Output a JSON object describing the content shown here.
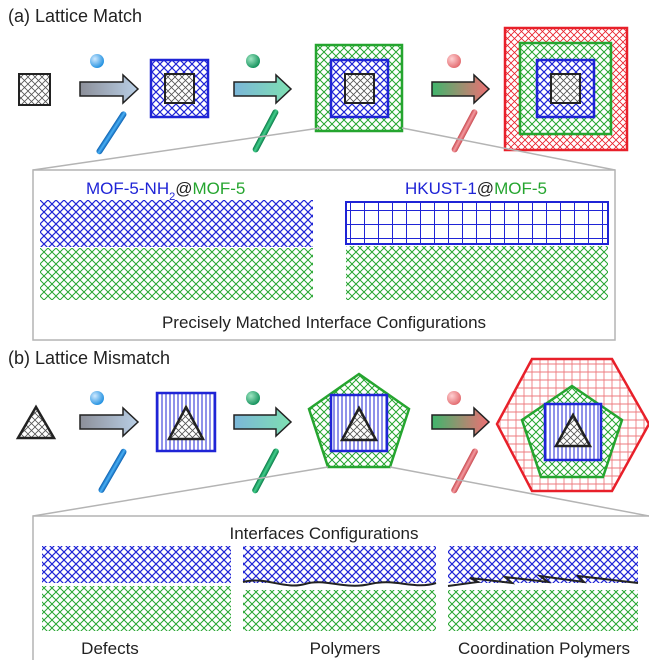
{
  "section_a": {
    "title": "(a) Lattice Match",
    "panel_left_title": {
      "part1": "MOF-5-NH",
      "sub": "2",
      "part2": "@",
      "part3": "MOF-5"
    },
    "panel_right_title": {
      "part1": "HKUST-1",
      "part2": "@",
      "part3": "MOF-5"
    },
    "caption": "Precisely Matched Interface Configurations"
  },
  "section_b": {
    "title": "(b) Lattice Mismatch",
    "panel_title": "Interfaces Configurations",
    "labels": [
      "Defects",
      "Polymers",
      "Coordination Polymers"
    ]
  },
  "colors": {
    "core": "#333333",
    "blue": "#1f24d6",
    "green": "#25a52f",
    "red": "#e8202a",
    "ball_blue": "#1e8fe0",
    "ball_green": "#11905a",
    "ball_red": "#e2696d",
    "arrow": "#9aa3ad"
  }
}
